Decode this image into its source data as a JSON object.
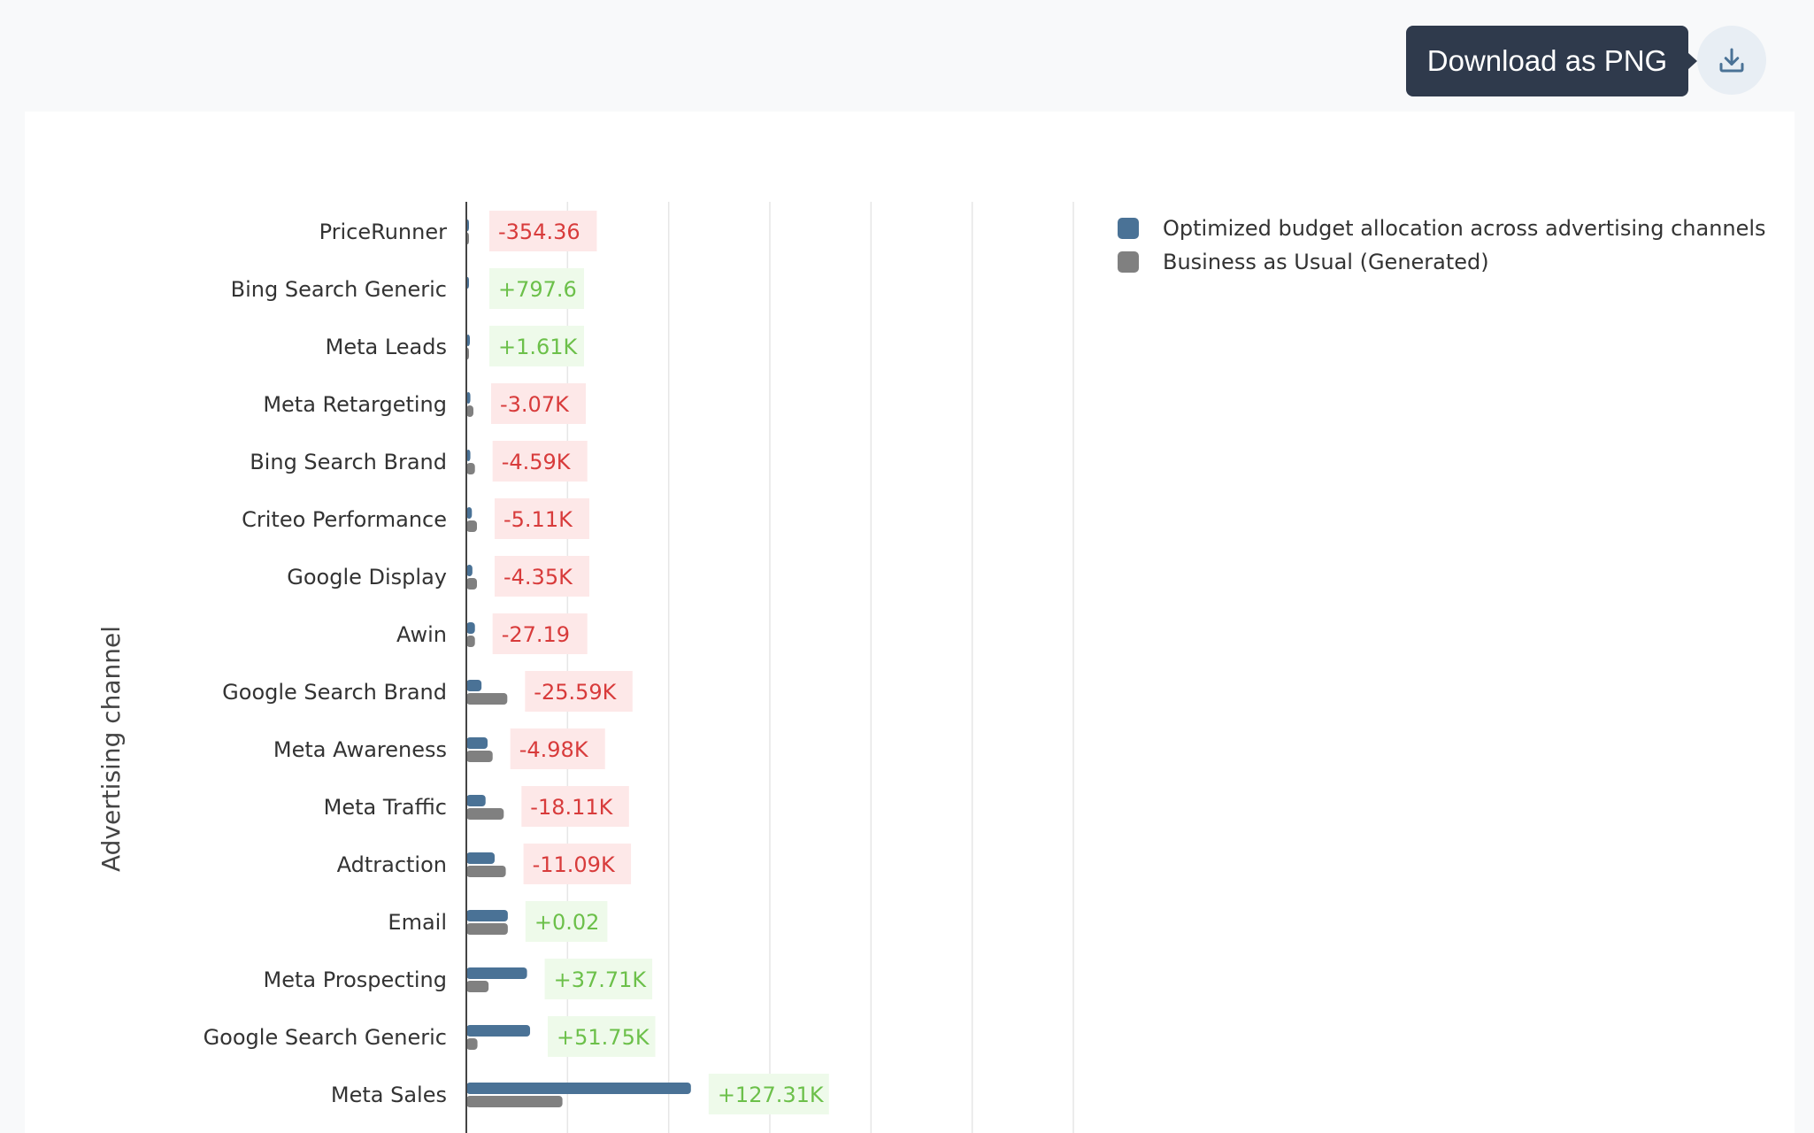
{
  "toolbar": {
    "tooltip_text": "Download as PNG",
    "download_icon": "download-icon"
  },
  "colors": {
    "optimized": "#4a7296",
    "business_as_usual": "#808080",
    "positive_text": "#6cc04a",
    "positive_bg": "#eefaea",
    "negative_text": "#d83b3b",
    "negative_bg": "#fde8e8"
  },
  "chart_data": {
    "type": "bar",
    "orientation": "horizontal",
    "ylabel": "Advertising channel",
    "xlabel": "",
    "categories": [
      "PriceRunner",
      "Bing Search Generic",
      "Meta Leads",
      "Meta Retargeting",
      "Bing Search Brand",
      "Criteo Performance",
      "Google Display",
      "Awin",
      "Google Search Brand",
      "Meta Awareness",
      "Meta Traffic",
      "Adtraction",
      "Email",
      "Meta Prospecting",
      "Google Search Generic",
      "Meta Sales"
    ],
    "series": [
      {
        "name": "Optimized budget allocation across advertising channels",
        "color": "#4a7296",
        "values": [
          500,
          800,
          3500,
          4000,
          4000,
          5500,
          6000,
          8500,
          15000,
          21000,
          19000,
          28000,
          41000,
          60000,
          63000,
          222000
        ]
      },
      {
        "name": "Business as Usual (Generated)",
        "color": "#808080",
        "values": [
          850,
          0,
          2000,
          7000,
          8500,
          10500,
          10500,
          8500,
          40500,
          26000,
          37000,
          39000,
          41000,
          22000,
          11000,
          95000
        ]
      }
    ],
    "deltas": [
      "-354.36",
      "+797.6",
      "+1.61K",
      "-3.07K",
      "-4.59K",
      "-5.11K",
      "-4.35K",
      "-27.19",
      "-25.59K",
      "-4.98K",
      "-18.11K",
      "-11.09K",
      "+0.02",
      "+37.71K",
      "+51.75K",
      "+127.31K"
    ],
    "xlim": [
      0,
      600000
    ],
    "grid": true,
    "legend_position": "top-right"
  }
}
